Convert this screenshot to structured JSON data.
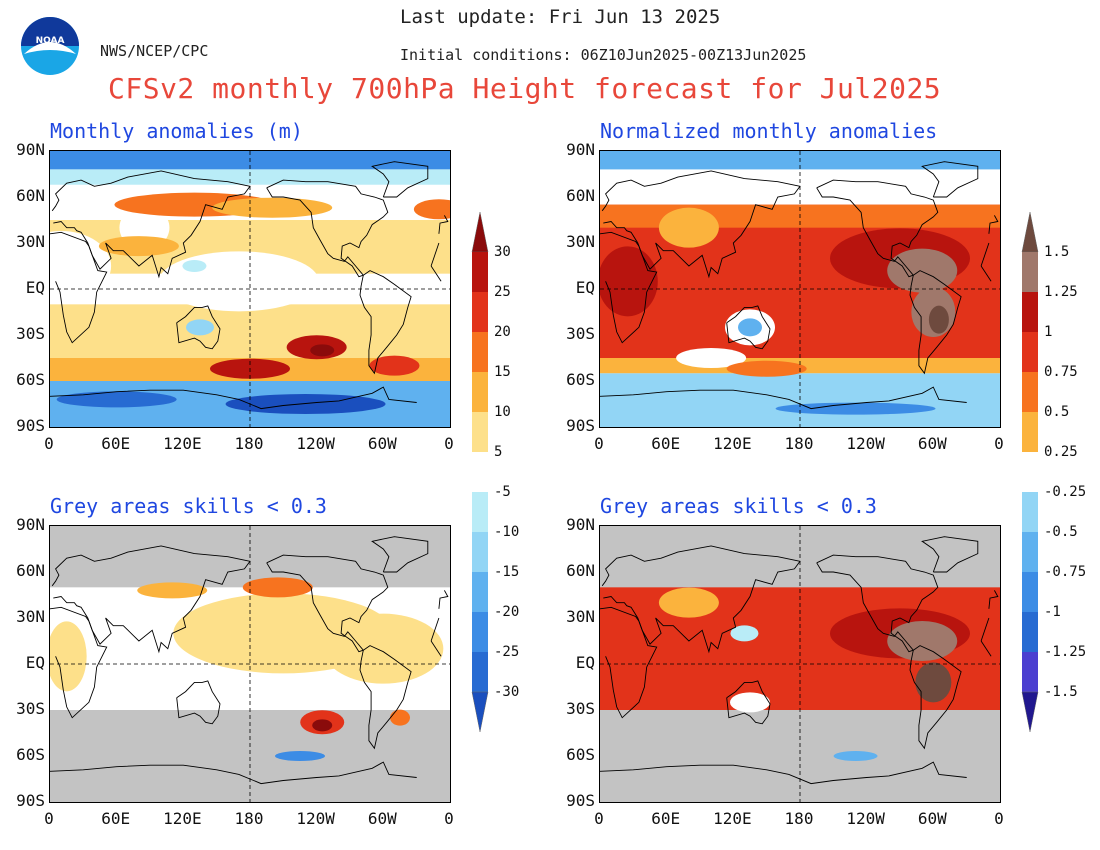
{
  "header": {
    "last_update": "Last update: Fri Jun 13 2025",
    "agency": "NWS/NCEP/CPC",
    "initial_conditions": "Initial conditions: 06Z10Jun2025-00Z13Jun2025",
    "title": "CFSv2 monthly 700hPa Height forecast for Jul2025",
    "logo_text": "NOAA"
  },
  "panels": {
    "top_left_title": "Monthly anomalies (m)",
    "top_right_title": "Normalized monthly anomalies",
    "bottom_left_title": "Grey areas skills < 0.3",
    "bottom_right_title": "Grey areas skills < 0.3"
  },
  "axes": {
    "lat_labels": [
      "90N",
      "60N",
      "30N",
      "EQ",
      "30S",
      "60S",
      "90S"
    ],
    "lon_labels": [
      "0",
      "60E",
      "120E",
      "180",
      "120W",
      "60W",
      "0"
    ]
  },
  "colorbars": {
    "left": {
      "upper_labels": [
        "30",
        "25",
        "20",
        "15",
        "10",
        "5"
      ],
      "lower_labels": [
        "-5",
        "-10",
        "-15",
        "-20",
        "-25",
        "-30"
      ]
    },
    "right": {
      "upper_labels": [
        "1.5",
        "1.25",
        "1",
        "0.75",
        "0.5",
        "0.25"
      ],
      "lower_labels": [
        "-0.25",
        "-0.5",
        "-0.75",
        "-1",
        "-1.25",
        "-1.5"
      ]
    }
  },
  "colors": {
    "title_red": "#e8473a",
    "panel_title_blue": "#1f47e0",
    "skill_grey": "#c3c3c3",
    "anom_pos": [
      "#fde08a",
      "#fbb33d",
      "#f7731f",
      "#e2331a",
      "#b8140e",
      "#8a0b0b"
    ],
    "anom_neg": [
      "#b9ecf7",
      "#92d5f5",
      "#5fb1ef",
      "#3c8ce5",
      "#276bd2",
      "#1a4fbe"
    ],
    "norm_pos_extra": [
      "#a0786b",
      "#6e4a3e"
    ],
    "norm_neg_extra": [
      "#4b3fd0",
      "#21188f"
    ]
  }
}
